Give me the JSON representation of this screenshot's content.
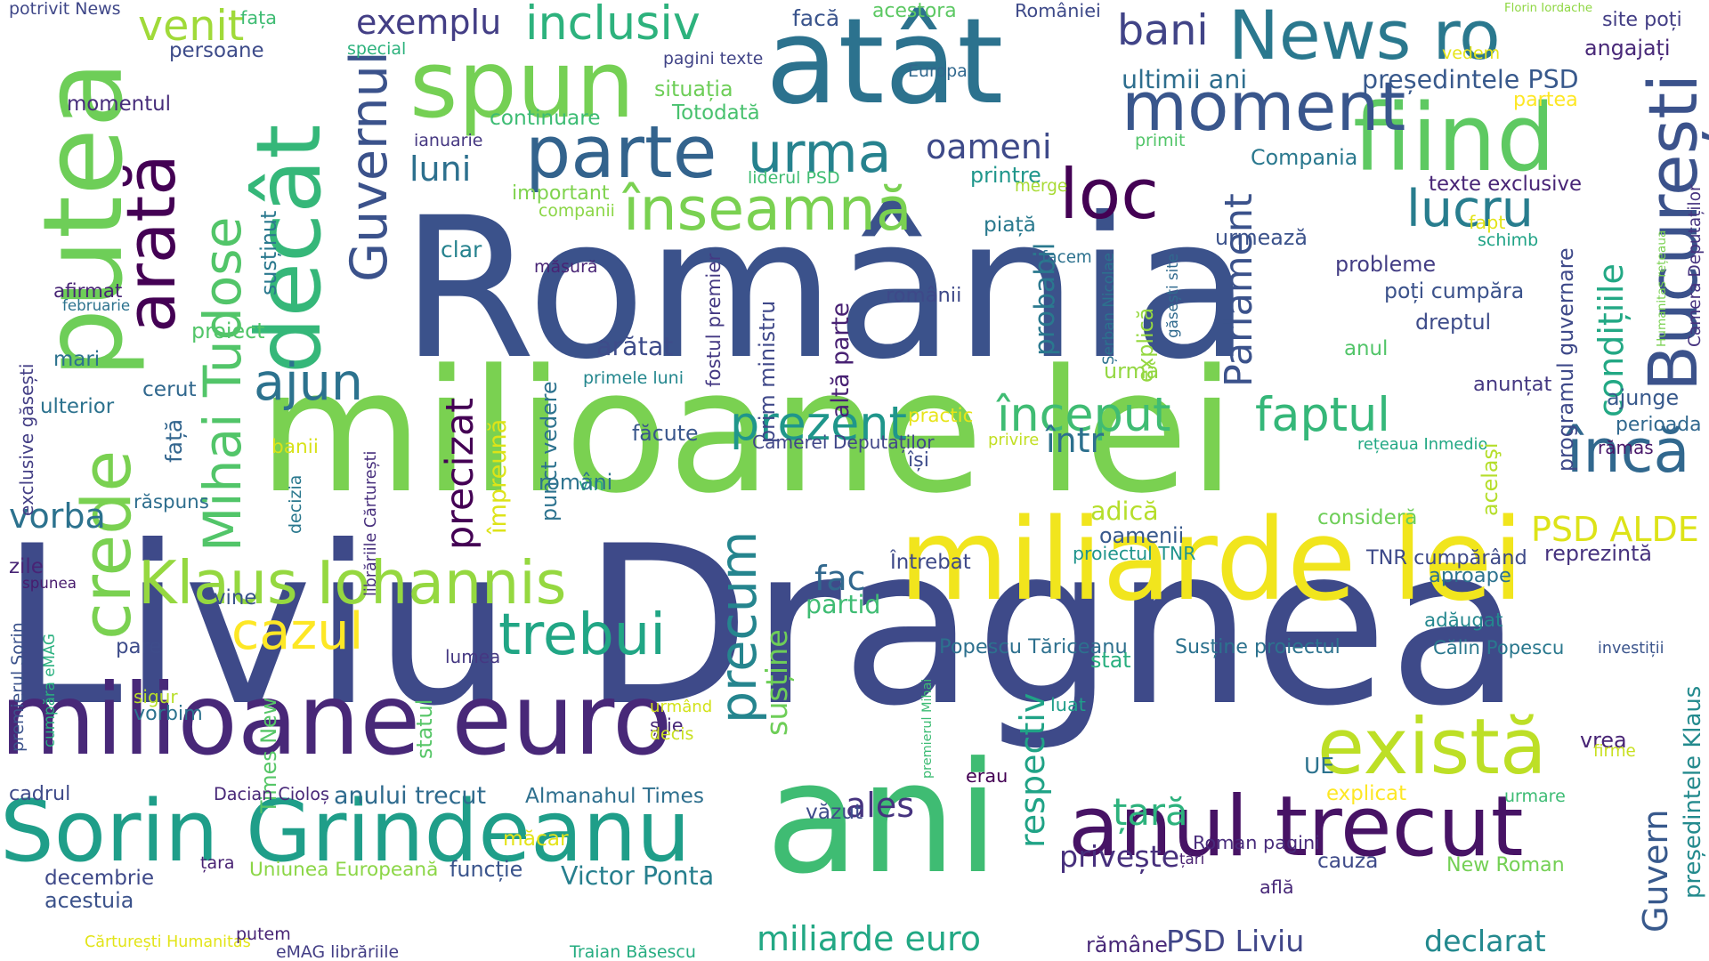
{
  "cloud": {
    "words": [
      {
        "text": "România",
        "color": "#3b528b"
      },
      {
        "text": "Liviu Dragnea",
        "color": "#3e4a89"
      },
      {
        "text": "milioane lei",
        "color": "#7ad151"
      },
      {
        "text": "atât",
        "color": "#2c728e"
      },
      {
        "text": "putea",
        "color": "#6ece58"
      },
      {
        "text": "ani",
        "color": "#3fbc73"
      },
      {
        "text": "miliarde lei",
        "color": "#f1e51d"
      },
      {
        "text": "milioane euro",
        "color": "#482878"
      },
      {
        "text": "Sorin Grindeanu",
        "color": "#1f9e89"
      },
      {
        "text": "fiind",
        "color": "#5ec962"
      },
      {
        "text": "spun",
        "color": "#75d054"
      },
      {
        "text": "News ro",
        "color": "#2a788e"
      },
      {
        "text": "decât",
        "color": "#35b779"
      },
      {
        "text": "arată",
        "color": "#440154"
      },
      {
        "text": "crede",
        "color": "#7ad151"
      },
      {
        "text": "anul trecut",
        "color": "#471365"
      },
      {
        "text": "există",
        "color": "#bddf26"
      },
      {
        "text": "București",
        "color": "#3b528b"
      },
      {
        "text": "loc",
        "color": "#440154"
      },
      {
        "text": "moment",
        "color": "#39568c"
      },
      {
        "text": "Klaus Iohannis",
        "color": "#95d840"
      },
      {
        "text": "trebui",
        "color": "#21a685"
      },
      {
        "text": "cazul",
        "color": "#fde725"
      },
      {
        "text": "precum",
        "color": "#25858e"
      },
      {
        "text": "Mihai Tudose",
        "color": "#52c569"
      },
      {
        "text": "Guvernul",
        "color": "#3b528b"
      },
      {
        "text": "parte",
        "color": "#33638d"
      },
      {
        "text": "urma",
        "color": "#26828e"
      },
      {
        "text": "înseamnă",
        "color": "#7ad151"
      },
      {
        "text": "lucru",
        "color": "#287d8e"
      },
      {
        "text": "ajun",
        "color": "#2c728e"
      },
      {
        "text": "prezent",
        "color": "#1f968b"
      },
      {
        "text": "început",
        "color": "#3fbc73"
      },
      {
        "text": "faptul",
        "color": "#35b779"
      },
      {
        "text": "încă",
        "color": "#31688e"
      },
      {
        "text": "Parlament",
        "color": "#3b528b"
      },
      {
        "text": "precizat",
        "color": "#440154"
      },
      {
        "text": "condițiile",
        "color": "#22a884"
      },
      {
        "text": "inclusiv",
        "color": "#2db27d"
      },
      {
        "text": "venit",
        "color": "#a0da39"
      },
      {
        "text": "bani",
        "color": "#414487"
      },
      {
        "text": "exemplu",
        "color": "#433e85"
      },
      {
        "text": "oameni",
        "color": "#3e4a89"
      },
      {
        "text": "ultimii ani",
        "color": "#2e6e8e"
      },
      {
        "text": "președintele PSD",
        "color": "#38598c"
      },
      {
        "text": "luni",
        "color": "#2d708e"
      },
      {
        "text": "vorba",
        "color": "#2c728e"
      },
      {
        "text": "ales",
        "color": "#46337f"
      },
      {
        "text": "fac",
        "color": "#31688e"
      },
      {
        "text": "partid",
        "color": "#3fbc73"
      },
      {
        "text": "susține",
        "color": "#6ece58"
      },
      {
        "text": "respectiv",
        "color": "#20a386"
      },
      {
        "text": "țară",
        "color": "#2db27d"
      },
      {
        "text": "Guvern",
        "color": "#38598c"
      },
      {
        "text": "PSD ALDE",
        "color": "#dde318"
      },
      {
        "text": "probabil",
        "color": "#2a788e"
      },
      {
        "text": "adică",
        "color": "#b5de2b"
      },
      {
        "text": "într",
        "color": "#2d708e"
      },
      {
        "text": "Victor Ponta",
        "color": "#277f8e"
      },
      {
        "text": "miliarde euro",
        "color": "#22a884"
      },
      {
        "text": "PSD Liviu",
        "color": "#404688"
      },
      {
        "text": "declarat",
        "color": "#23898e"
      },
      {
        "text": "privește",
        "color": "#462f7c"
      },
      {
        "text": "mari",
        "color": "#2c728e"
      },
      {
        "text": "fața",
        "color": "#3fbc73"
      },
      {
        "text": "față",
        "color": "#32658e"
      },
      {
        "text": "Florin Iordache",
        "color": "#8fd744"
      },
      {
        "text": "potrivit News",
        "color": "#3f4788"
      },
      {
        "text": "persoane",
        "color": "#3e4c8a"
      },
      {
        "text": "momentul",
        "color": "#472d7b"
      },
      {
        "text": "facă",
        "color": "#3a548c"
      },
      {
        "text": "acestora",
        "color": "#5cc863"
      },
      {
        "text": "României",
        "color": "#3e4a89"
      },
      {
        "text": "pagini texte",
        "color": "#414487"
      },
      {
        "text": "situația",
        "color": "#6ece58"
      },
      {
        "text": "continuare",
        "color": "#3dbc74"
      },
      {
        "text": "Totodată",
        "color": "#48c16e"
      },
      {
        "text": "Europa",
        "color": "#31688e"
      },
      {
        "text": "special",
        "color": "#2db27d"
      },
      {
        "text": "ianuarie",
        "color": "#453781"
      },
      {
        "text": "primit",
        "color": "#52c569"
      },
      {
        "text": "liderul PSD",
        "color": "#40bd72"
      },
      {
        "text": "Compania",
        "color": "#2a788e"
      },
      {
        "text": "texte exclusive",
        "color": "#482576"
      },
      {
        "text": "site poți",
        "color": "#433e85"
      },
      {
        "text": "angajați",
        "color": "#482878"
      },
      {
        "text": "vedem",
        "color": "#e5e419"
      },
      {
        "text": "partea",
        "color": "#fde725"
      },
      {
        "text": "Camera Deputaților",
        "color": "#46337f"
      },
      {
        "text": "Humanitas rețeaua",
        "color": "#7ad151"
      },
      {
        "text": "schimb",
        "color": "#20a386"
      },
      {
        "text": "fapt",
        "color": "#e2e418"
      },
      {
        "text": "programul guvernare",
        "color": "#3e4989"
      },
      {
        "text": "important",
        "color": "#7fd34e"
      },
      {
        "text": "companii",
        "color": "#8bd646"
      },
      {
        "text": "printre",
        "color": "#1f968b"
      },
      {
        "text": "merge",
        "color": "#a8db34"
      },
      {
        "text": "piață",
        "color": "#29798e"
      },
      {
        "text": "facem",
        "color": "#2c718e"
      },
      {
        "text": "Șerban Nicolae",
        "color": "#2c728e"
      },
      {
        "text": "găsești site",
        "color": "#306a8e"
      },
      {
        "text": "urmează",
        "color": "#3b528b"
      },
      {
        "text": "probleme",
        "color": "#433d84"
      },
      {
        "text": "poți cumpăra",
        "color": "#3b528b"
      },
      {
        "text": "dreptul",
        "color": "#3e4c8a"
      },
      {
        "text": "anul",
        "color": "#52c569"
      },
      {
        "text": "explică",
        "color": "#95d840"
      },
      {
        "text": "urmă",
        "color": "#93d741"
      },
      {
        "text": "clar",
        "color": "#26828e"
      },
      {
        "text": "măsură",
        "color": "#482475"
      },
      {
        "text": "fostul premier",
        "color": "#443983"
      },
      {
        "text": "prim ministru",
        "color": "#3f4889"
      },
      {
        "text": "altă parte",
        "color": "#482173"
      },
      {
        "text": "românii",
        "color": "#3e4989"
      },
      {
        "text": "arătat",
        "color": "#3e4c8a"
      },
      {
        "text": "primele luni",
        "color": "#24878e"
      },
      {
        "text": "punct vedere",
        "color": "#2c728e"
      },
      {
        "text": "practic",
        "color": "#e7e419"
      },
      {
        "text": "privire",
        "color": "#c2df23"
      },
      {
        "text": "Camerei Deputaților",
        "color": "#404688"
      },
      {
        "text": "rețeaua Inmedio",
        "color": "#22a884"
      },
      {
        "text": "își",
        "color": "#3e4c8a"
      },
      {
        "text": "vin",
        "color": "#29af7f"
      },
      {
        "text": "români",
        "color": "#2c728e"
      },
      {
        "text": "împreună",
        "color": "#dde318"
      },
      {
        "text": "făcute",
        "color": "#39568c"
      },
      {
        "text": "decizia",
        "color": "#2a788e"
      },
      {
        "text": "librăriile Cărturești",
        "color": "#472f7d"
      },
      {
        "text": "oamenii",
        "color": "#38598c"
      },
      {
        "text": "Întrebat",
        "color": "#3e4989"
      },
      {
        "text": "proiectul TNR",
        "color": "#1f948c"
      },
      {
        "text": "TNR cumpărând",
        "color": "#3e4a89"
      },
      {
        "text": "reprezintă",
        "color": "#46327e"
      },
      {
        "text": "aproape",
        "color": "#2c728e"
      },
      {
        "text": "adăugat",
        "color": "#24878e"
      },
      {
        "text": "consideră",
        "color": "#6ece58"
      },
      {
        "text": "anunțat",
        "color": "#453882"
      },
      {
        "text": "acelaşi",
        "color": "#b5de2b"
      },
      {
        "text": "rămas",
        "color": "#481769"
      },
      {
        "text": "perioada",
        "color": "#31688e"
      },
      {
        "text": "ajunge",
        "color": "#38598c"
      },
      {
        "text": "investiții",
        "color": "#3a548c"
      },
      {
        "text": "președintele Klaus",
        "color": "#238a8d"
      },
      {
        "text": "vrea",
        "color": "#482475"
      },
      {
        "text": "firme",
        "color": "#c8e020"
      },
      {
        "text": "urmare",
        "color": "#3dbc74"
      },
      {
        "text": "explicat",
        "color": "#fde725"
      },
      {
        "text": "New Roman",
        "color": "#74d055"
      },
      {
        "text": "cauza",
        "color": "#3e4a89"
      },
      {
        "text": "află",
        "color": "#482878"
      },
      {
        "text": "rămâne",
        "color": "#482878"
      },
      {
        "text": "Roman pagini",
        "color": "#472a7a"
      },
      {
        "text": "țări",
        "color": "#481f70"
      },
      {
        "text": "UE",
        "color": "#2c728e"
      },
      {
        "text": "Călin Popescu",
        "color": "#2a788e"
      },
      {
        "text": "Susține proiectul",
        "color": "#2c728e"
      },
      {
        "text": "Popescu Tăriceanu",
        "color": "#2d708e"
      },
      {
        "text": "stat",
        "color": "#29af7f"
      },
      {
        "text": "premierul Mihai",
        "color": "#3dbc74"
      },
      {
        "text": "luat",
        "color": "#1f9e89"
      },
      {
        "text": "erau",
        "color": "#440154"
      },
      {
        "text": "văzut",
        "color": "#3e4c8a"
      },
      {
        "text": "statul",
        "color": "#56c667"
      },
      {
        "text": "știe",
        "color": "#482878"
      },
      {
        "text": "decis",
        "color": "#c8e020"
      },
      {
        "text": "urmând",
        "color": "#d2e21b"
      },
      {
        "text": "lumea",
        "color": "#453882"
      },
      {
        "text": "Times New",
        "color": "#56c667"
      },
      {
        "text": "Dacian Cioloș",
        "color": "#482878"
      },
      {
        "text": "anului trecut",
        "color": "#2f6b8e"
      },
      {
        "text": "Almanahul Times",
        "color": "#2e6f8e"
      },
      {
        "text": "Uniunea Europeană",
        "color": "#8bd646"
      },
      {
        "text": "funcție",
        "color": "#3a548c"
      },
      {
        "text": "măcar",
        "color": "#e5e419"
      },
      {
        "text": "țara",
        "color": "#482173"
      },
      {
        "text": "Cărturești Humanitas",
        "color": "#e2e418"
      },
      {
        "text": "eMAG librăriile",
        "color": "#433e85"
      },
      {
        "text": "Traian Băsescu",
        "color": "#26ad81"
      },
      {
        "text": "putem",
        "color": "#482475"
      },
      {
        "text": "decembrie",
        "color": "#3e4989"
      },
      {
        "text": "acestuia",
        "color": "#3b528b"
      },
      {
        "text": "cadrul",
        "color": "#3e4a89"
      },
      {
        "text": "premierul Sorin",
        "color": "#3b528b"
      },
      {
        "text": "cumpăra eMAG",
        "color": "#2ab07f"
      },
      {
        "text": "sigur",
        "color": "#b8de29"
      },
      {
        "text": "vorbim",
        "color": "#2c728e"
      },
      {
        "text": "pare",
        "color": "#3e4c8a"
      },
      {
        "text": "zile",
        "color": "#482475"
      },
      {
        "text": "spunea",
        "color": "#481c6e"
      },
      {
        "text": "vine",
        "color": "#3a548c"
      },
      {
        "text": "răspuns",
        "color": "#2e6e8e"
      },
      {
        "text": "banii",
        "color": "#d8e219"
      },
      {
        "text": "exclusive găsești",
        "color": "#433e85"
      },
      {
        "text": "ulterior",
        "color": "#2c728e"
      },
      {
        "text": "cerut",
        "color": "#31688e"
      },
      {
        "text": "proiect",
        "color": "#52c569"
      },
      {
        "text": "susținut",
        "color": "#2a788e"
      },
      {
        "text": "februarie",
        "color": "#2c728e"
      },
      {
        "text": "afirmat",
        "color": "#482475"
      },
      {
        "text": "nivelul",
        "color": "#414487"
      },
      {
        "text": "cumpărând Almanahul",
        "color": "#37b878"
      }
    ]
  }
}
